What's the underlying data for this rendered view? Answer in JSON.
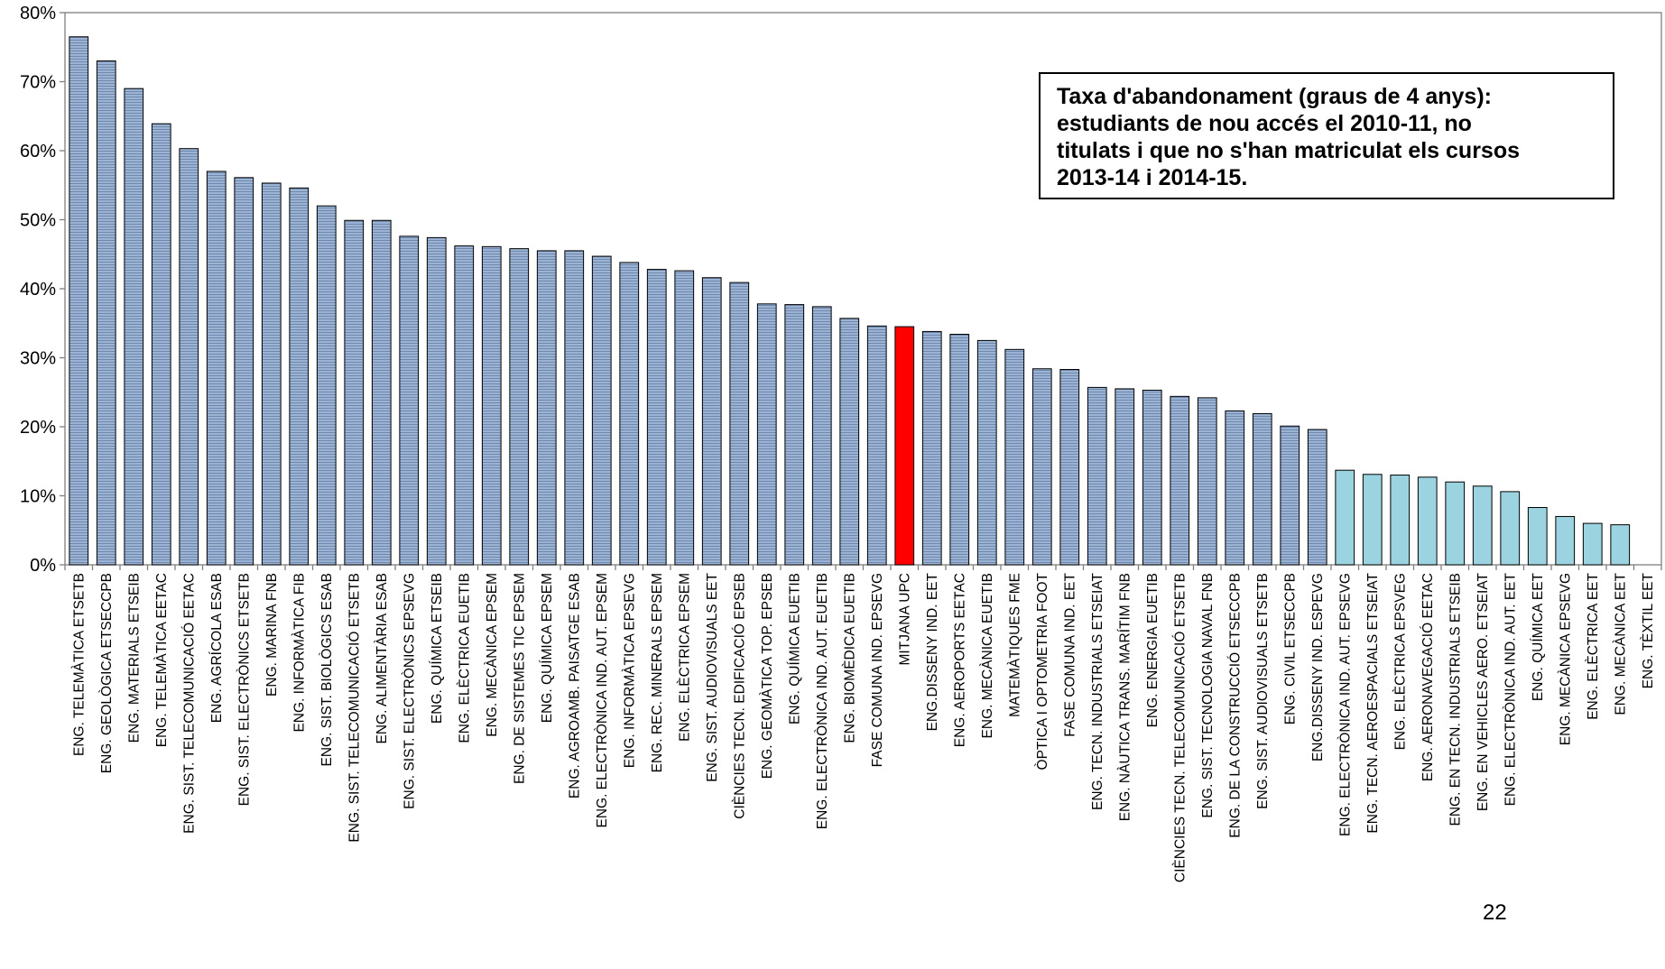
{
  "chart_data": {
    "type": "bar",
    "title": "",
    "xlabel": "",
    "ylabel": "",
    "ylim": [
      0,
      80
    ],
    "y_tick_labels": [
      "0%",
      "10%",
      "20%",
      "30%",
      "40%",
      "50%",
      "60%",
      "70%",
      "80%"
    ],
    "y_tick_values": [
      0,
      10,
      20,
      30,
      40,
      50,
      60,
      70,
      80
    ],
    "grid": false,
    "legend": "none",
    "colors": {
      "default": "#8fa6c8",
      "highlight": "#ff0000",
      "light": "#9bd3e0",
      "stroke": "#000000"
    },
    "categories": [
      "ENG. TELEMÀTICA ETSETB",
      "ENG. GEOLÒGICA ETSECCPB",
      "ENG. MATERIALS ETSEIB",
      "ENG. TELEMÀTICA EETAC",
      "ENG. SIST. TELECOMUNICACIÓ EETAC",
      "ENG. AGRÍCOLA ESAB",
      "ENG. SIST. ELECTRÒNICS ETSETB",
      "ENG. MARINA FNB",
      "ENG. INFORMÀTICA FIB",
      "ENG. SIST. BIOLÒGICS ESAB",
      "ENG. SIST. TELECOMUNICACIÓ ETSETB",
      "ENG. ALIMENTÀRIA ESAB",
      "ENG. SIST. ELECTRÒNICS EPSEVG",
      "ENG. QUÍMICA ETSEIB",
      "ENG. ELÈCTRICA EUETIB",
      "ENG. MECÀNICA EPSEM",
      "ENG. DE SISTEMES TIC EPSEM",
      "ENG. QUÍMICA EPSEM",
      "ENG. AGROAMB. PAISATGE ESAB",
      "ENG. ELECTRÒNICA IND. AUT. EPSEM",
      "ENG. INFORMÀTICA EPSEVG",
      "ENG. REC. MINERALS EPSEM",
      "ENG. ELÈCTRICA EPSEM",
      "ENG. SIST. AUDIOVISUALS EET",
      "CIÈNCIES TECN. EDIFICACIÓ EPSEB",
      "ENG. GEOMÀTICA TOP. EPSEB",
      "ENG. QUÍMICA EUETIB",
      "ENG. ELECTRÒNICA IND. AUT. EUETIB",
      "ENG. BIOMÈDICA EUETIB",
      "FASE COMUNA IND. EPSEVG",
      "MITJANA UPC",
      "ENG.DISSENY IND. EET",
      "ENG. AEROPORTS EETAC",
      "ENG. MECÀNICA EUETIB",
      "MATEMÀTIQUES FME",
      "ÒPTICA I OPTOMETRIA FOOT",
      "FASE COMUNA IND. EET",
      "ENG. TECN. INDUSTRIALS ETSEIAT",
      "ENG. NÀUTICA TRANS. MARÍTIM FNB",
      "ENG. ENERGIA EUETIB",
      "CIÈNCIES TECN. TELECOMUNICACIÓ ETSETB",
      "ENG. SIST. TECNOLOGIA NAVAL FNB",
      "ENG. DE LA CONSTRUCCIÓ ETSECCPB",
      "ENG. SIST. AUDIOVISUALS ETSETB",
      "ENG. CIVIL ETSECCPB",
      "ENG.DISSENY IND. ESPEVG",
      "ENG. ELECTRÒNICA IND. AUT. EPSEVG",
      "ENG. TECN. AEROESPACIALS ETSEIAT",
      "ENG. ELÈCTRICA EPSVEG",
      "ENG. AERONAVEGACIÓ EETAC",
      "ENG. EN TECN. INDUSTRIALS ETSEIB",
      "ENG. EN VEHICLES AERO. ETSEIAT",
      "ENG. ELECTRÒNICA IND. AUT. EET",
      "ENG. QUÍMICA EET",
      "ENG. MECÀNICA EPSEVG",
      "ENG. ELÈCTRICA EET",
      "ENG. MECÀNICA EET",
      "ENG. TÈXTIL EET"
    ],
    "values": [
      76.5,
      73.0,
      69.0,
      63.9,
      60.3,
      57.0,
      56.1,
      55.3,
      54.6,
      52.0,
      49.9,
      49.9,
      47.6,
      47.4,
      46.2,
      46.1,
      45.8,
      45.5,
      45.5,
      44.7,
      43.8,
      42.8,
      42.6,
      41.6,
      40.9,
      37.8,
      37.7,
      37.4,
      35.7,
      34.6,
      34.5,
      33.8,
      33.4,
      32.5,
      31.2,
      28.4,
      28.3,
      25.7,
      25.5,
      25.3,
      24.4,
      24.2,
      22.3,
      21.9,
      20.1,
      19.6,
      13.7,
      13.1,
      13.0,
      12.7,
      12.0,
      11.4,
      10.6,
      8.3,
      7.0,
      6.0,
      5.8,
      0
    ],
    "bar_styles": [
      "default",
      "default",
      "default",
      "default",
      "default",
      "default",
      "default",
      "default",
      "default",
      "default",
      "default",
      "default",
      "default",
      "default",
      "default",
      "default",
      "default",
      "default",
      "default",
      "default",
      "default",
      "default",
      "default",
      "default",
      "default",
      "default",
      "default",
      "default",
      "default",
      "default",
      "highlight",
      "default",
      "default",
      "default",
      "default",
      "default",
      "default",
      "default",
      "default",
      "default",
      "default",
      "default",
      "default",
      "default",
      "default",
      "default",
      "light",
      "light",
      "light",
      "light",
      "light",
      "light",
      "light",
      "light",
      "light",
      "light",
      "light",
      "light"
    ],
    "annotation": [
      "Taxa d'abandonament (graus de 4 anys):",
      "estudiants de nou accés el 2010-11, no",
      "titulats i que no s'han matriculat els cursos",
      "2013-14 i 2014-15."
    ]
  },
  "page_number": "22"
}
